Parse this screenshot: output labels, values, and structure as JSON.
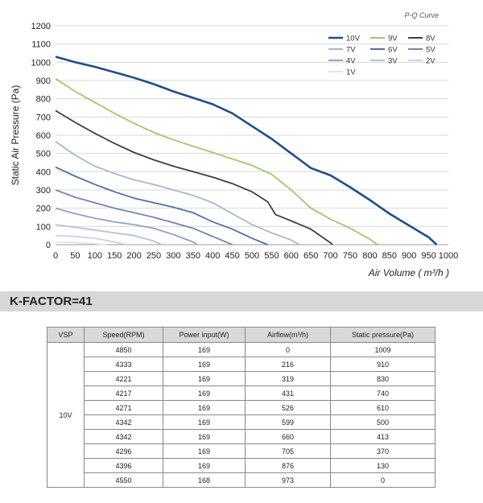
{
  "chart_data": {
    "type": "line",
    "title": "P-Q Curve",
    "xlabel": "Air Volume ( m³/h )",
    "ylabel": "Static Air Pressure  (Pa)",
    "xlim": [
      0,
      1000
    ],
    "ylim": [
      0,
      1200
    ],
    "xticks": [
      "0",
      "50",
      "100",
      "150",
      "200",
      "250",
      "300",
      "350",
      "400",
      "450",
      "500",
      "550",
      "600",
      "650",
      "700",
      "750",
      "800",
      "850",
      "900",
      "950",
      "1000"
    ],
    "yticks": [
      "0",
      "100",
      "200",
      "300",
      "400",
      "500",
      "600",
      "700",
      "800",
      "900",
      "1000",
      "1100",
      "1200"
    ],
    "grid": "horizontal",
    "legend_position": "top-right",
    "series": [
      {
        "name": "10V",
        "color": "#1f4e8c",
        "points": [
          [
            0,
            1030
          ],
          [
            50,
            1000
          ],
          [
            100,
            975
          ],
          [
            150,
            945
          ],
          [
            200,
            915
          ],
          [
            250,
            880
          ],
          [
            300,
            840
          ],
          [
            350,
            805
          ],
          [
            400,
            770
          ],
          [
            450,
            720
          ],
          [
            500,
            650
          ],
          [
            550,
            580
          ],
          [
            600,
            500
          ],
          [
            650,
            420
          ],
          [
            700,
            380
          ],
          [
            750,
            315
          ],
          [
            800,
            245
          ],
          [
            850,
            170
          ],
          [
            900,
            105
          ],
          [
            950,
            40
          ],
          [
            970,
            0
          ]
        ]
      },
      {
        "name": "9V",
        "color": "#9bcb6c",
        "points": [
          [
            0,
            910
          ],
          [
            50,
            840
          ],
          [
            100,
            780
          ],
          [
            150,
            720
          ],
          [
            200,
            665
          ],
          [
            250,
            615
          ],
          [
            300,
            575
          ],
          [
            350,
            540
          ],
          [
            400,
            505
          ],
          [
            450,
            470
          ],
          [
            500,
            435
          ],
          [
            550,
            385
          ],
          [
            600,
            300
          ],
          [
            650,
            200
          ],
          [
            700,
            140
          ],
          [
            750,
            90
          ],
          [
            800,
            30
          ],
          [
            820,
            0
          ]
        ]
      },
      {
        "name": "8V",
        "color": "#3f3f3f",
        "points": [
          [
            0,
            735
          ],
          [
            50,
            670
          ],
          [
            100,
            610
          ],
          [
            150,
            555
          ],
          [
            200,
            505
          ],
          [
            250,
            465
          ],
          [
            300,
            430
          ],
          [
            350,
            400
          ],
          [
            400,
            370
          ],
          [
            450,
            335
          ],
          [
            500,
            290
          ],
          [
            540,
            235
          ],
          [
            560,
            165
          ],
          [
            600,
            130
          ],
          [
            650,
            85
          ],
          [
            700,
            10
          ],
          [
            705,
            0
          ]
        ]
      },
      {
        "name": "7V",
        "color": "#a6b8cf",
        "points": [
          [
            0,
            565
          ],
          [
            50,
            490
          ],
          [
            100,
            430
          ],
          [
            150,
            390
          ],
          [
            200,
            355
          ],
          [
            250,
            330
          ],
          [
            300,
            300
          ],
          [
            350,
            270
          ],
          [
            400,
            230
          ],
          [
            450,
            170
          ],
          [
            500,
            110
          ],
          [
            550,
            65
          ],
          [
            600,
            25
          ],
          [
            620,
            0
          ]
        ]
      },
      {
        "name": "6V",
        "color": "#4f6fa6",
        "points": [
          [
            0,
            425
          ],
          [
            50,
            375
          ],
          [
            100,
            330
          ],
          [
            150,
            290
          ],
          [
            200,
            255
          ],
          [
            250,
            230
          ],
          [
            300,
            205
          ],
          [
            350,
            175
          ],
          [
            400,
            125
          ],
          [
            450,
            85
          ],
          [
            500,
            35
          ],
          [
            540,
            0
          ]
        ]
      },
      {
        "name": "5V",
        "color": "#6f86b3",
        "points": [
          [
            0,
            300
          ],
          [
            50,
            260
          ],
          [
            100,
            230
          ],
          [
            150,
            200
          ],
          [
            200,
            175
          ],
          [
            250,
            150
          ],
          [
            300,
            120
          ],
          [
            350,
            90
          ],
          [
            400,
            45
          ],
          [
            450,
            0
          ]
        ]
      },
      {
        "name": "4V",
        "color": "#8fa2c6",
        "points": [
          [
            0,
            200
          ],
          [
            50,
            170
          ],
          [
            100,
            145
          ],
          [
            150,
            125
          ],
          [
            200,
            110
          ],
          [
            250,
            90
          ],
          [
            300,
            55
          ],
          [
            350,
            15
          ],
          [
            360,
            0
          ]
        ]
      },
      {
        "name": "3V",
        "color": "#b5c3da",
        "points": [
          [
            0,
            110
          ],
          [
            50,
            95
          ],
          [
            100,
            80
          ],
          [
            150,
            65
          ],
          [
            200,
            50
          ],
          [
            250,
            20
          ],
          [
            270,
            0
          ]
        ]
      },
      {
        "name": "2V",
        "color": "#c8d2e3",
        "points": [
          [
            0,
            50
          ],
          [
            50,
            45
          ],
          [
            100,
            35
          ],
          [
            150,
            15
          ],
          [
            180,
            0
          ]
        ]
      },
      {
        "name": "1V",
        "color": "#dde4ee",
        "points": [
          [
            0,
            15
          ],
          [
            50,
            12
          ],
          [
            100,
            5
          ],
          [
            130,
            0
          ]
        ]
      }
    ]
  },
  "kfactor": "K-FACTOR=41",
  "table": {
    "headers": [
      "VSP",
      "Speed(RPM)",
      "Power input(W)",
      "Airflow(m³/h)",
      "Static pressure(Pa)"
    ],
    "vsp": "10V",
    "rows": [
      [
        "4850",
        "169",
        "0",
        "1009"
      ],
      [
        "4333",
        "169",
        "216",
        "910"
      ],
      [
        "4221",
        "169",
        "319",
        "830"
      ],
      [
        "4217",
        "169",
        "431",
        "740"
      ],
      [
        "4271",
        "169",
        "526",
        "610"
      ],
      [
        "4342",
        "169",
        "599",
        "500"
      ],
      [
        "4342",
        "169",
        "660",
        "413"
      ],
      [
        "4296",
        "169",
        "705",
        "370"
      ],
      [
        "4396",
        "169",
        "876",
        "130"
      ],
      [
        "4550",
        "168",
        "973",
        "0"
      ]
    ]
  }
}
